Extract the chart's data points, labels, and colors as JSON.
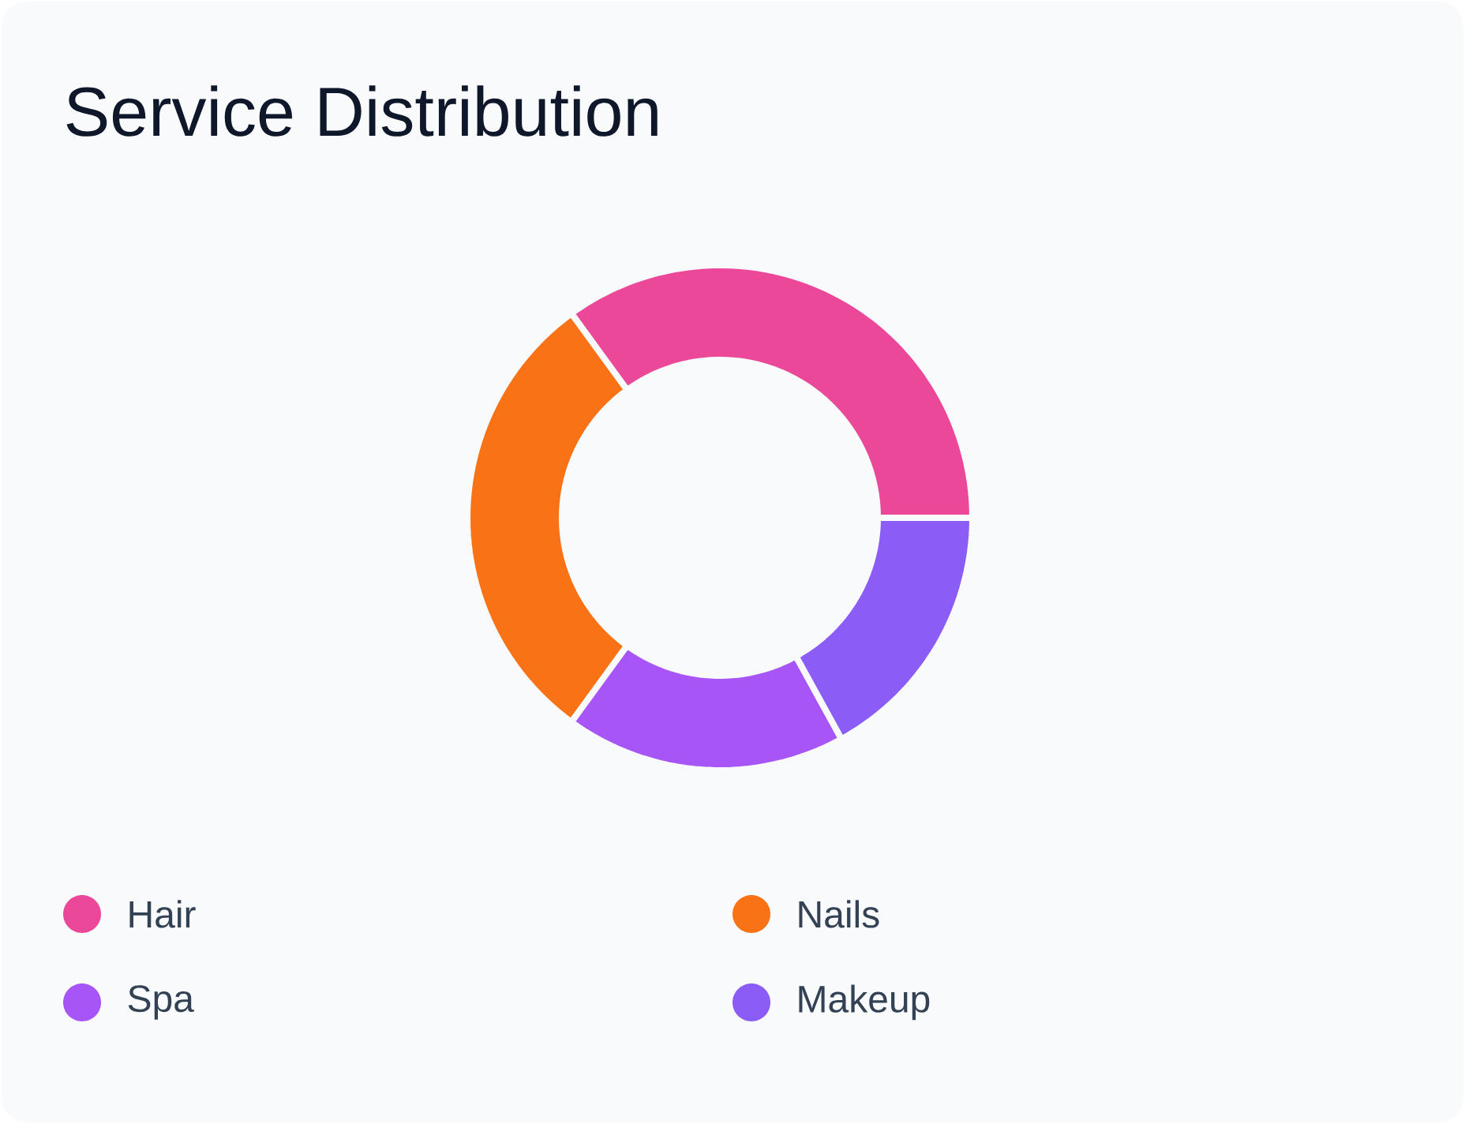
{
  "chart_data": {
    "type": "donut",
    "title": "Service Distribution",
    "categories": [
      "Hair",
      "Nails",
      "Spa",
      "Makeup"
    ],
    "values": [
      35,
      30,
      18,
      17
    ],
    "colors": [
      "#ec4899",
      "#f97316",
      "#a855f7",
      "#8b5cf6"
    ],
    "legend": "bottom"
  }
}
